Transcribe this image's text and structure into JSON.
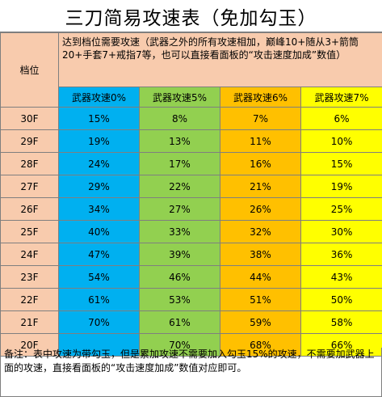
{
  "title": "三刀简易攻速表（免加勾玉）",
  "header": {
    "level_label": "档位",
    "description": "达到档位需要攻速（武器之外的所有攻速相加，巅峰10+随从3+箭筒20+手套7+戒指7等，也可以直接看面板的“攻击速度加成”数值）",
    "columns": [
      "武器攻速0%",
      "武器攻速5%",
      "武器攻速6%",
      "武器攻速7%"
    ]
  },
  "colors": {
    "header_bg": "#f8cbad",
    "blue": "#00b0f0",
    "green": "#92d050",
    "orange": "#ffc000",
    "yellow": "#ffff00"
  },
  "rows": [
    {
      "level": "30F",
      "values": [
        "15%",
        "8%",
        "7%",
        "6%"
      ]
    },
    {
      "level": "29F",
      "values": [
        "19%",
        "13%",
        "11%",
        "10%"
      ]
    },
    {
      "level": "28F",
      "values": [
        "24%",
        "17%",
        "16%",
        "15%"
      ]
    },
    {
      "level": "27F",
      "values": [
        "29%",
        "22%",
        "21%",
        "19%"
      ]
    },
    {
      "level": "26F",
      "values": [
        "34%",
        "27%",
        "26%",
        "25%"
      ]
    },
    {
      "level": "25F",
      "values": [
        "40%",
        "33%",
        "32%",
        "30%"
      ]
    },
    {
      "level": "24F",
      "values": [
        "47%",
        "39%",
        "38%",
        "36%"
      ]
    },
    {
      "level": "23F",
      "values": [
        "54%",
        "46%",
        "44%",
        "43%"
      ]
    },
    {
      "level": "22F",
      "values": [
        "61%",
        "53%",
        "51%",
        "50%"
      ]
    },
    {
      "level": "21F",
      "values": [
        "70%",
        "61%",
        "59%",
        "58%"
      ]
    },
    {
      "level": "20F",
      "values": [
        "",
        "70%",
        "68%",
        "66%"
      ]
    }
  ],
  "note": "备注：表中攻速为带勾玉，但是累加攻速不需要加入勾玉15%的攻速，不需要加武器上面的攻速，直接看面板的“攻击速度加成”数值对应即可。"
}
